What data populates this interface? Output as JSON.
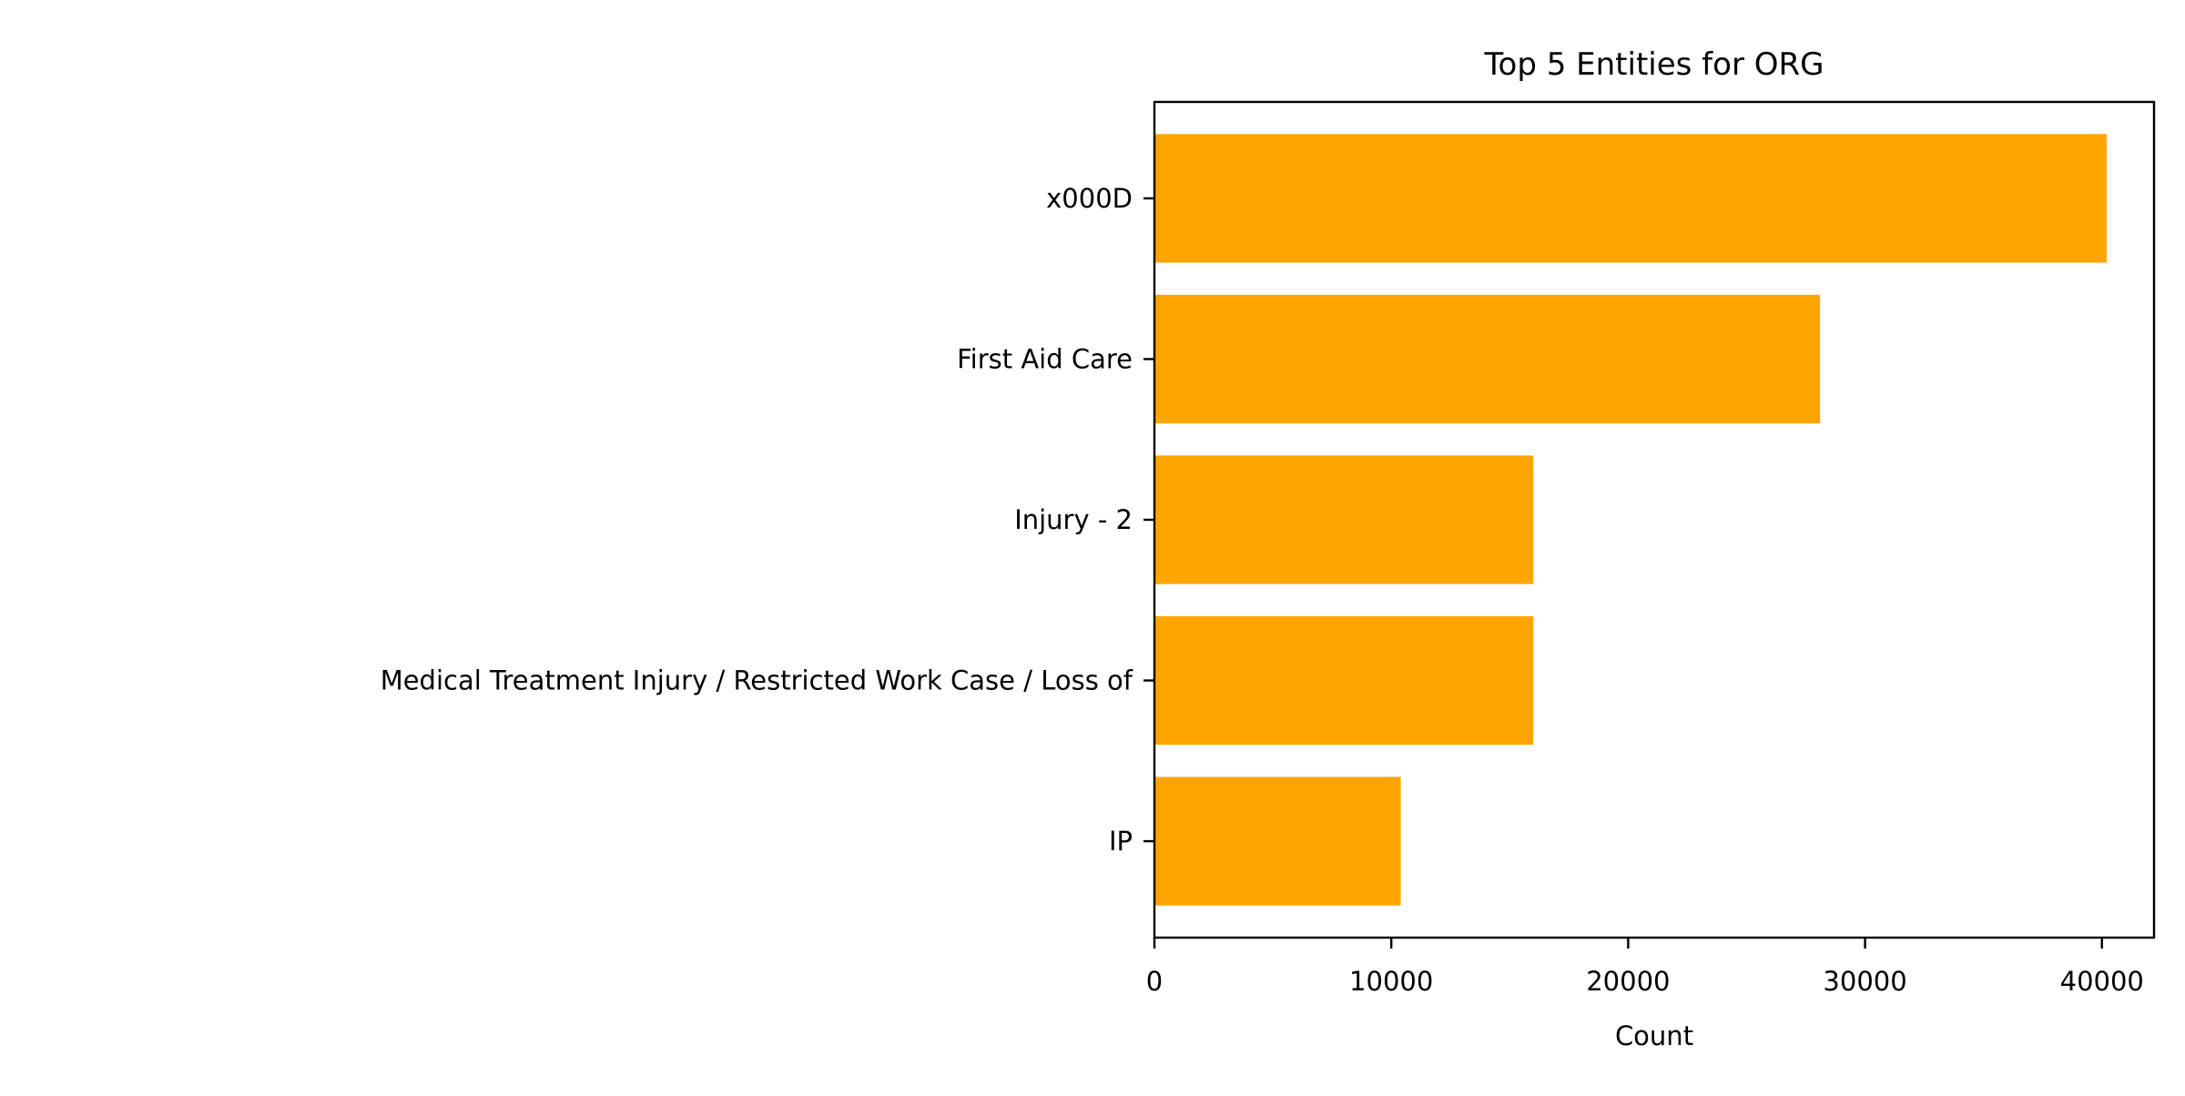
{
  "chart_data": {
    "type": "bar",
    "orientation": "horizontal",
    "title": "Top 5 Entities for ORG",
    "xlabel": "Count",
    "ylabel": "",
    "categories": [
      "x000D",
      "First Aid Care",
      "Injury - 2",
      "Medical Treatment Injury / Restricted Work Case / Loss of",
      "IP"
    ],
    "values": [
      40200,
      28100,
      16000,
      16000,
      10400
    ],
    "xlim": [
      0,
      42200
    ],
    "xticks": [
      0,
      10000,
      20000,
      30000,
      40000
    ],
    "grid": false,
    "legend": "none",
    "bar_color": "#ffa500"
  }
}
